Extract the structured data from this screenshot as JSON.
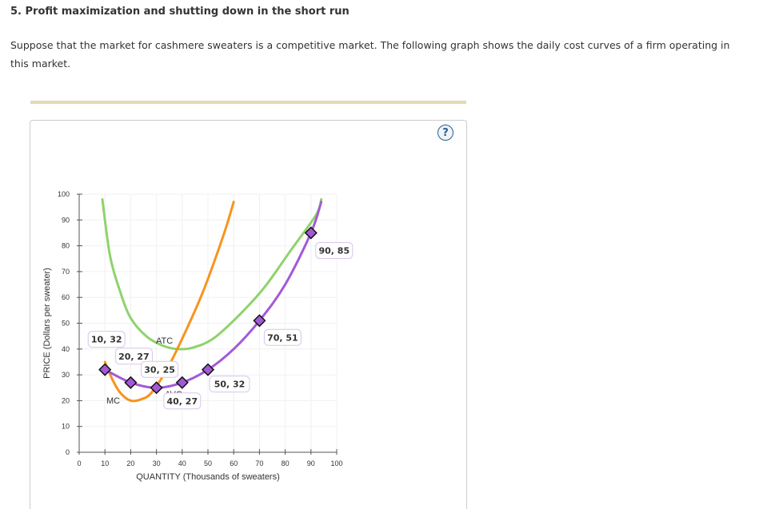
{
  "question": {
    "title": "5. Profit maximization and shutting down in the short run",
    "prompt": "Suppose that the market for cashmere sweaters is a competitive market. The following graph shows the daily cost curves of a firm operating in this market."
  },
  "help_icon": "?",
  "colors": {
    "mc": "#f7941d",
    "atc": "#8ed36a",
    "avc": "#a259d6",
    "marker": "#a259d6"
  },
  "chart_data": {
    "type": "line",
    "xlabel": "QUANTITY (Thousands of sweaters)",
    "ylabel": "PRICE (Dollars per sweater)",
    "xlim": [
      0,
      100
    ],
    "ylim": [
      0,
      100
    ],
    "x_ticks": [
      0,
      10,
      20,
      30,
      40,
      50,
      60,
      70,
      80,
      90,
      100
    ],
    "y_ticks": [
      0,
      10,
      20,
      30,
      40,
      50,
      60,
      70,
      80,
      90,
      100
    ],
    "series": [
      {
        "name": "MC",
        "points": [
          [
            10,
            35
          ],
          [
            13,
            28
          ],
          [
            16,
            23
          ],
          [
            20,
            20
          ],
          [
            24,
            20.5
          ],
          [
            28,
            23
          ],
          [
            34,
            32
          ],
          [
            40,
            44
          ],
          [
            48,
            62
          ],
          [
            56,
            84
          ],
          [
            60,
            97
          ]
        ]
      },
      {
        "name": "ATC",
        "points": [
          [
            9,
            98
          ],
          [
            12,
            76
          ],
          [
            16,
            62
          ],
          [
            20,
            52
          ],
          [
            26,
            45
          ],
          [
            32,
            41.5
          ],
          [
            38,
            40
          ],
          [
            44,
            40.5
          ],
          [
            52,
            44
          ],
          [
            62,
            53
          ],
          [
            72,
            64
          ],
          [
            82,
            78
          ],
          [
            92,
            92
          ],
          [
            94,
            98
          ]
        ]
      },
      {
        "name": "AVC",
        "points": [
          [
            10,
            32
          ],
          [
            20,
            27
          ],
          [
            30,
            25
          ],
          [
            40,
            27
          ],
          [
            50,
            32
          ],
          [
            60,
            40
          ],
          [
            70,
            51
          ],
          [
            80,
            65
          ],
          [
            90,
            85
          ],
          [
            94,
            97
          ]
        ]
      }
    ],
    "points": [
      {
        "x": 10,
        "y": 32,
        "label": "10, 32"
      },
      {
        "x": 20,
        "y": 27,
        "label": "20, 27"
      },
      {
        "x": 30,
        "y": 25,
        "label": "30, 25"
      },
      {
        "x": 40,
        "y": 27,
        "label": "40, 27"
      },
      {
        "x": 50,
        "y": 32,
        "label": "50, 32"
      },
      {
        "x": 70,
        "y": 51,
        "label": "70, 51"
      },
      {
        "x": 90,
        "y": 85,
        "label": "90, 85"
      }
    ],
    "curve_labels": {
      "mc": "MC",
      "atc": "ATC",
      "avc": "AVC"
    }
  }
}
